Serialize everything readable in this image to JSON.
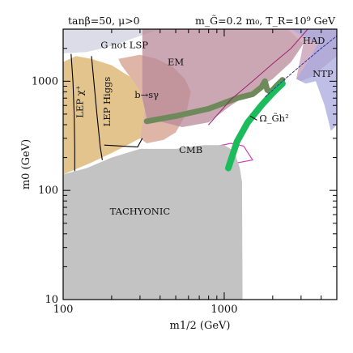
{
  "chart_data": {
    "type": "scatter",
    "header_left": "tanβ=50, μ>0",
    "header_right": "m_G̃=0.2 m₀, T_R=10⁹ GeV",
    "xlabel": "m1/2 (GeV)",
    "ylabel": "m0 (GeV)",
    "x_scale": "log",
    "y_scale": "log",
    "xlim": [
      100,
      5000
    ],
    "ylim": [
      10,
      3000
    ],
    "x_ticks": [
      "100",
      "1000"
    ],
    "y_ticks": [
      "10",
      "100",
      "1000"
    ],
    "grid": false,
    "region_labels": {
      "g_not_lsp": "G not LSP",
      "lep_chi": "LEP χ⁺",
      "lep_higgs": "LEP Higgs",
      "b_s_gamma": "b→sγ",
      "em": "EM",
      "had": "HAD",
      "ntp": "NTP",
      "cmb": "CMB",
      "tachyonic": "TACHYONIC",
      "relic": "Ω_G̃h²"
    },
    "regions": [
      {
        "name": "G not LSP",
        "color": "#dcdce8",
        "boundary": [
          [
            100,
            3000
          ],
          [
            100,
            1800
          ],
          [
            140,
            1850
          ],
          [
            200,
            2100
          ],
          [
            300,
            2600
          ],
          [
            400,
            3000
          ]
        ]
      },
      {
        "name": "LEP Higgs / LEP chargino",
        "color": "#e2c48c",
        "boundary": [
          [
            100,
            140
          ],
          [
            100,
            1500
          ],
          [
            120,
            1700
          ],
          [
            150,
            1600
          ],
          [
            200,
            1400
          ],
          [
            260,
            1100
          ],
          [
            300,
            800
          ],
          [
            320,
            550
          ],
          [
            300,
            300
          ],
          [
            250,
            260
          ],
          [
            200,
            220
          ],
          [
            150,
            180
          ]
        ]
      },
      {
        "name": "b→sγ",
        "color": "#d8a898",
        "boundary": [
          [
            220,
            1600
          ],
          [
            300,
            1750
          ],
          [
            380,
            1600
          ],
          [
            480,
            1350
          ],
          [
            570,
            1050
          ],
          [
            620,
            800
          ],
          [
            580,
            500
          ],
          [
            500,
            340
          ],
          [
            420,
            290
          ],
          [
            330,
            270
          ],
          [
            300,
            300
          ],
          [
            320,
            550
          ],
          [
            300,
            800
          ],
          [
            260,
            1100
          ],
          [
            230,
            1400
          ]
        ]
      },
      {
        "name": "EM",
        "color": "#b88a98",
        "boundary": [
          [
            310,
            3000
          ],
          [
            2500,
            3000
          ],
          [
            3100,
            2200
          ],
          [
            2600,
            1500
          ],
          [
            2000,
            1050
          ],
          [
            1500,
            800
          ],
          [
            1100,
            600
          ],
          [
            800,
            420
          ],
          [
            550,
            380
          ],
          [
            420,
            420
          ],
          [
            330,
            460
          ],
          [
            310,
            700
          ]
        ]
      },
      {
        "name": "HAD",
        "color": "#c9a0b8",
        "boundary": [
          [
            2500,
            3000
          ],
          [
            5000,
            3000
          ],
          [
            5000,
            1700
          ],
          [
            3500,
            1100
          ],
          [
            3000,
            1000
          ],
          [
            2800,
            1050
          ],
          [
            3100,
            2200
          ]
        ]
      },
      {
        "name": "NTP",
        "color": "#a8a8de",
        "boundary": [
          [
            2600,
            3000
          ],
          [
            5000,
            3000
          ],
          [
            5000,
            400
          ],
          [
            4600,
            350
          ],
          [
            4200,
            600
          ],
          [
            3700,
            1000
          ],
          [
            3200,
            950
          ],
          [
            2800,
            1050
          ],
          [
            3300,
            1500
          ],
          [
            3800,
            2200
          ]
        ]
      },
      {
        "name": "CMB",
        "color": "#d040c0",
        "boundary": [
          [
            500,
            235
          ],
          [
            750,
            240
          ],
          [
            1100,
            270
          ],
          [
            1320,
            255
          ],
          [
            1500,
            190
          ],
          [
            1000,
            170
          ],
          [
            700,
            180
          ],
          [
            520,
            200
          ]
        ]
      },
      {
        "name": "TACHYONIC",
        "color": "#c3c3c3",
        "boundary": [
          [
            100,
            10
          ],
          [
            100,
            140
          ],
          [
            140,
            160
          ],
          [
            200,
            200
          ],
          [
            300,
            240
          ],
          [
            500,
            240
          ],
          [
            750,
            260
          ],
          [
            1000,
            260
          ],
          [
            1150,
            230
          ],
          [
            1250,
            160
          ],
          [
            1290,
            120
          ],
          [
            1300,
            10
          ]
        ]
      }
    ],
    "series": [
      {
        "name": "b→sγ",
        "color": "#6e8a5a",
        "points": [
          [
            330,
            430
          ],
          [
            500,
            480
          ],
          [
            800,
            560
          ],
          [
            1200,
            700
          ],
          [
            1500,
            760
          ],
          [
            1700,
            880
          ],
          [
            1790,
            1000
          ],
          [
            1850,
            830
          ],
          [
            1950,
            800
          ],
          [
            2100,
            900
          ],
          [
            2300,
            1030
          ]
        ]
      },
      {
        "name": "Ω_G̃h²",
        "color": "#1cbc5c",
        "points": [
          [
            1060,
            160
          ],
          [
            1200,
            280
          ],
          [
            1400,
            420
          ],
          [
            1700,
            600
          ],
          [
            2000,
            780
          ],
          [
            2300,
            950
          ]
        ]
      },
      {
        "name": "EM contour",
        "color": "#a02070",
        "points": [
          [
            800,
            400
          ],
          [
            1100,
            680
          ],
          [
            1500,
            1000
          ],
          [
            2000,
            1450
          ],
          [
            2600,
            2000
          ],
          [
            3300,
            3000
          ]
        ]
      },
      {
        "name": "m_stau = m_G boundary",
        "color": "#333399",
        "points": [
          [
            1800,
            720
          ],
          [
            2300,
            1000
          ],
          [
            3000,
            1400
          ],
          [
            4000,
            2000
          ],
          [
            5000,
            2600
          ]
        ]
      }
    ]
  }
}
